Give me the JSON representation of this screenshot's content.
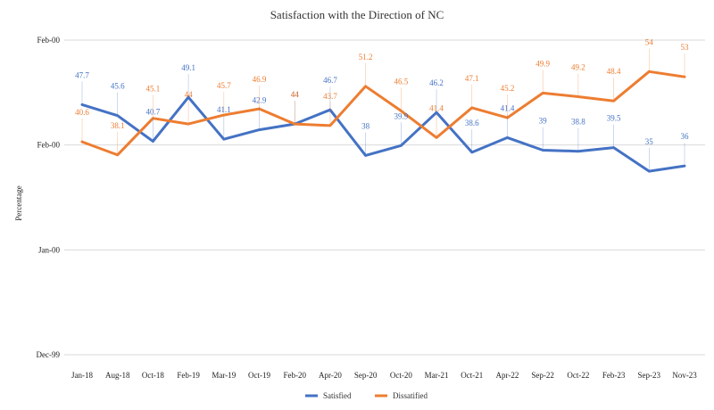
{
  "chart_data": {
    "type": "line",
    "title": "Satisfaction with the Direction of NC",
    "xlabel": "",
    "ylabel": "Percentage",
    "ylim": [
      0,
      60
    ],
    "y_ticks": [
      {
        "value": 0,
        "label": "Dec-99"
      },
      {
        "value": 20,
        "label": "Jan-00"
      },
      {
        "value": 40,
        "label": "Feb-00"
      },
      {
        "value": 60,
        "label": "Feb-00"
      }
    ],
    "grid": "horizontal",
    "legend_position": "bottom-center",
    "categories": [
      "Jan-18",
      "Aug-18",
      "Oct-18",
      "Feb-19",
      "Mar-19",
      "Oct-19",
      "Feb-20",
      "Apr-20",
      "Sep-20",
      "Oct-20",
      "Mar-21",
      "Oct-21",
      "Apr-22",
      "Sep-22",
      "Oct-22",
      "Feb-23",
      "Sep-23",
      "Nov-23"
    ],
    "series": [
      {
        "name": "Satisfied",
        "color": "#4472c4",
        "values": [
          47.7,
          45.6,
          40.7,
          49.1,
          41.1,
          42.9,
          44,
          46.7,
          38,
          39.9,
          46.2,
          38.6,
          41.4,
          39,
          38.8,
          39.5,
          35,
          36
        ]
      },
      {
        "name": "Dissatified",
        "color": "#ed7d31",
        "values": [
          40.6,
          38.1,
          45.1,
          44,
          45.7,
          46.9,
          44,
          43.7,
          51.2,
          46.5,
          41.4,
          47.1,
          45.2,
          49.9,
          49.2,
          48.4,
          54,
          53
        ]
      }
    ]
  }
}
